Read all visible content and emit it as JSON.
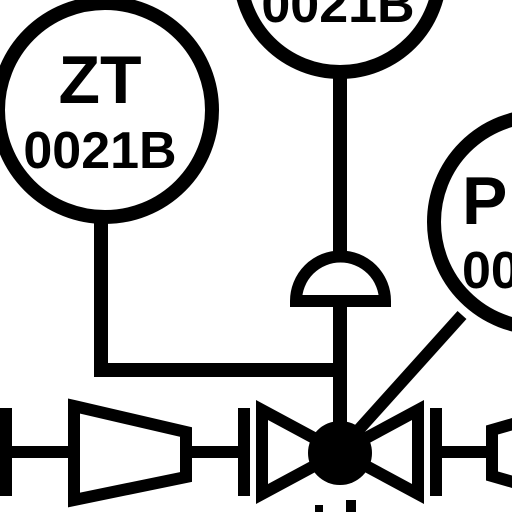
{
  "instruments": [
    {
      "letters": "ZT",
      "tag": "0021B"
    },
    {
      "letters": "",
      "tag": "0021B"
    },
    {
      "letters": "P",
      "tag": "00"
    }
  ],
  "colors": {
    "line": "#000000",
    "background": "#ffffff"
  }
}
